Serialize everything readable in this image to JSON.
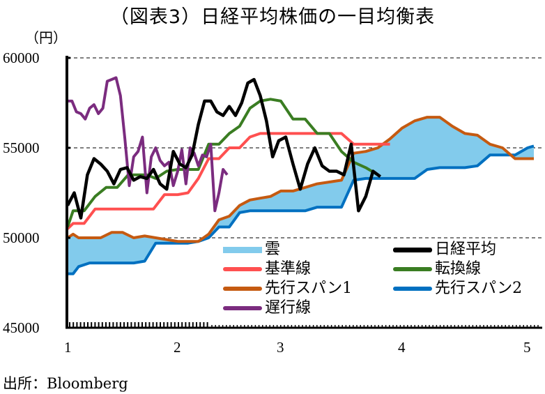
{
  "title": "（図表3）日経平均株価の一目均衡表",
  "y_unit": "（円）",
  "source": "出所：Bloomberg",
  "y_ticks": [
    "60000",
    "55000",
    "50000",
    "45000"
  ],
  "x_ticks": [
    "1",
    "2",
    "3",
    "4",
    "5"
  ],
  "legend": [
    {
      "label": "雲",
      "color": "#82CBEC",
      "kind": "area"
    },
    {
      "label": "日経平均",
      "color": "#000000",
      "kind": "line"
    },
    {
      "label": "基準線",
      "color": "#FF5050",
      "kind": "line"
    },
    {
      "label": "転換線",
      "color": "#3A7D22",
      "kind": "line"
    },
    {
      "label": "先行スパン1",
      "color": "#C55A11",
      "kind": "line"
    },
    {
      "label": "先行スパン2",
      "color": "#0070C0",
      "kind": "line"
    },
    {
      "label": "遅行線",
      "color": "#7B2C7F",
      "kind": "line"
    }
  ],
  "chart_data": {
    "type": "line",
    "title": "（図表3）日経平均株価の一目均衡表",
    "xlabel": "",
    "ylabel": "（円）",
    "ylim": [
      45000,
      60000
    ],
    "yticks": [
      45000,
      50000,
      55000,
      60000
    ],
    "xticks": [
      "1",
      "2",
      "3",
      "4",
      "5"
    ],
    "grid": "horizontal dashed at 50000, 55000, 60000",
    "legend_position": "inside bottom-right",
    "x_note": "x values are approximate month positions (1=Jan .. 5=May)",
    "series": [
      {
        "name": "日経平均",
        "color": "#000000",
        "x": [
          1.0,
          1.06,
          1.12,
          1.18,
          1.24,
          1.3,
          1.36,
          1.42,
          1.48,
          1.54,
          1.6,
          1.66,
          1.72,
          1.78,
          1.84,
          1.9,
          1.96,
          2.02,
          2.08,
          2.14,
          2.2,
          2.26,
          2.32,
          2.38,
          2.44,
          2.5,
          2.56,
          2.62,
          2.68,
          2.74,
          2.8,
          2.86,
          2.92,
          2.98,
          3.04,
          3.1,
          3.16,
          3.22,
          3.28,
          3.34,
          3.4,
          3.46,
          3.52,
          3.58,
          3.64,
          3.7,
          3.76,
          3.82
        ],
        "values": [
          51800,
          52500,
          51100,
          53500,
          54400,
          54100,
          53700,
          53000,
          53800,
          53900,
          53200,
          53400,
          53300,
          53800,
          53000,
          52700,
          54800,
          54100,
          53900,
          54600,
          56300,
          57600,
          57600,
          57000,
          56800,
          57300,
          56800,
          57500,
          58600,
          58800,
          57900,
          56500,
          54500,
          55400,
          55600,
          54100,
          52700,
          54100,
          55000,
          54000,
          53700,
          53700,
          53500,
          55200,
          51500,
          52300,
          53700,
          53400
        ]
      },
      {
        "name": "基準線",
        "color": "#FF5050",
        "x": [
          1.0,
          1.05,
          1.15,
          1.25,
          1.35,
          1.5,
          1.65,
          1.78,
          1.88,
          2.0,
          2.1,
          2.2,
          2.3,
          2.4,
          2.5,
          2.6,
          2.7,
          2.8,
          2.9,
          3.0,
          3.1,
          3.2,
          3.3,
          3.4,
          3.5,
          3.6,
          3.7,
          3.8,
          3.9
        ],
        "values": [
          50500,
          50800,
          50800,
          51600,
          51600,
          51600,
          51600,
          51600,
          52400,
          52400,
          52500,
          53300,
          54400,
          54400,
          55000,
          55000,
          55600,
          55800,
          55800,
          55800,
          55800,
          55800,
          55800,
          55800,
          55800,
          55200,
          55200,
          55200,
          55200
        ]
      },
      {
        "name": "転換線",
        "color": "#3A7D22",
        "x": [
          1.0,
          1.05,
          1.15,
          1.25,
          1.35,
          1.45,
          1.55,
          1.65,
          1.72,
          1.8,
          1.9,
          2.0,
          2.1,
          2.2,
          2.3,
          2.4,
          2.5,
          2.6,
          2.7,
          2.8,
          2.9,
          3.0,
          3.1,
          3.2,
          3.3,
          3.4,
          3.5,
          3.6,
          3.7,
          3.8
        ],
        "values": [
          50600,
          51500,
          51500,
          52300,
          52800,
          52800,
          53500,
          53500,
          53500,
          53300,
          53700,
          53800,
          53800,
          53800,
          55200,
          55200,
          55800,
          56200,
          57200,
          57600,
          57700,
          57600,
          56600,
          56600,
          55800,
          55800,
          54800,
          54200,
          53900,
          53500
        ]
      },
      {
        "name": "先行スパン1",
        "color": "#C55A11",
        "x": [
          1.0,
          1.05,
          1.1,
          1.2,
          1.3,
          1.4,
          1.5,
          1.6,
          1.7,
          1.8,
          1.9,
          2.0,
          2.1,
          2.2,
          2.3,
          2.4,
          2.5,
          2.6,
          2.7,
          2.8,
          2.9,
          3.0,
          3.1,
          3.2,
          3.3,
          3.4,
          3.5,
          3.6,
          3.7,
          3.8,
          3.9,
          4.0,
          4.1,
          4.2,
          4.3,
          4.4,
          4.5,
          4.6,
          4.7,
          4.8,
          4.9,
          5.0,
          5.05
        ],
        "values": [
          50000,
          50200,
          50000,
          50000,
          50000,
          50300,
          50300,
          50000,
          50100,
          50000,
          49900,
          49800,
          49800,
          49800,
          50200,
          51000,
          51200,
          51800,
          52100,
          52200,
          52300,
          52600,
          52600,
          52800,
          53000,
          53100,
          53200,
          54700,
          54800,
          55000,
          55500,
          56100,
          56500,
          56700,
          56700,
          56200,
          55800,
          55700,
          55200,
          55000,
          54400,
          54400,
          54400
        ]
      },
      {
        "name": "先行スパン2",
        "color": "#0070C0",
        "x": [
          1.0,
          1.05,
          1.1,
          1.2,
          1.3,
          1.4,
          1.5,
          1.6,
          1.7,
          1.8,
          1.9,
          2.0,
          2.1,
          2.2,
          2.3,
          2.4,
          2.5,
          2.6,
          2.7,
          2.8,
          2.9,
          3.0,
          3.1,
          3.2,
          3.3,
          3.4,
          3.5,
          3.6,
          3.7,
          3.8,
          3.9,
          4.0,
          4.1,
          4.2,
          4.3,
          4.4,
          4.5,
          4.6,
          4.7,
          4.8,
          4.9,
          5.0,
          5.05
        ],
        "values": [
          48000,
          48000,
          48400,
          48600,
          48600,
          48600,
          48600,
          48600,
          48700,
          49700,
          49700,
          49700,
          49700,
          49800,
          50000,
          50600,
          50600,
          51400,
          51500,
          51500,
          51500,
          51500,
          51500,
          51500,
          51700,
          51700,
          51700,
          53200,
          53300,
          53300,
          53300,
          53300,
          53300,
          53800,
          53900,
          53900,
          53900,
          54000,
          54600,
          54600,
          54600,
          55000,
          55100
        ]
      },
      {
        "name": "遅行線",
        "color": "#7B2C7F",
        "x": [
          1.0,
          1.04,
          1.08,
          1.12,
          1.16,
          1.2,
          1.24,
          1.28,
          1.32,
          1.36,
          1.4,
          1.44,
          1.48,
          1.52,
          1.56,
          1.6,
          1.64,
          1.68,
          1.72,
          1.76,
          1.8,
          1.84,
          1.88,
          1.92,
          1.96,
          2.0,
          2.04,
          2.08,
          2.12,
          2.16,
          2.2,
          2.24,
          2.28,
          2.32,
          2.36,
          2.4,
          2.44,
          2.48
        ],
        "values": [
          57600,
          57600,
          57000,
          56900,
          56600,
          57200,
          57400,
          56900,
          57200,
          58700,
          58800,
          58900,
          57900,
          55500,
          52900,
          54500,
          54800,
          55600,
          52500,
          54500,
          55000,
          54300,
          54000,
          54200,
          52900,
          53700,
          54900,
          53000,
          55000,
          54700,
          54000,
          54600,
          54500,
          55200,
          51500,
          52500,
          53800,
          53500
        ]
      }
    ],
    "cloud": {
      "name": "雲",
      "color": "#82CBEC",
      "between": [
        "先行スパン1",
        "先行スパン2"
      ]
    }
  }
}
